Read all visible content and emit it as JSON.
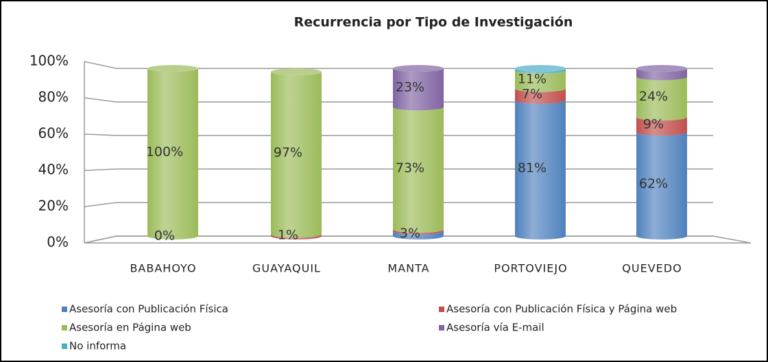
{
  "chart_data": {
    "type": "stacked_cylinder",
    "title": "Recurrencia por Tipo de Investigación",
    "categories": [
      "BABAHOYO",
      "GUAYAQUIL",
      "MANTA",
      "PORTOVIEJO",
      "QUEVEDO"
    ],
    "series": [
      {
        "name": "Asesoría con Publicación Física",
        "color": "#4f81bd",
        "values": [
          0,
          0,
          3,
          81,
          62
        ],
        "value_labels": [
          "0%",
          null,
          "3%",
          "81%",
          "62%"
        ]
      },
      {
        "name": "Asesoría con Publicación Física y Página web",
        "color": "#c0504d",
        "values": [
          0,
          1,
          1,
          7,
          9
        ],
        "value_labels": [
          null,
          "1%",
          null,
          "7%",
          "9%"
        ]
      },
      {
        "name": "Asesoría en Página web",
        "color": "#9bbb59",
        "values": [
          100,
          97,
          73,
          11,
          24
        ],
        "value_labels": [
          "100%",
          "97%",
          "73%",
          "11%",
          "24%"
        ]
      },
      {
        "name": "Asesoría vía E-mail",
        "color": "#8064a2",
        "values": [
          0,
          0,
          23,
          0,
          5
        ],
        "value_labels": [
          null,
          null,
          "23%",
          null,
          null
        ]
      },
      {
        "name": "No informa",
        "color": "#4bacc6",
        "values": [
          0,
          0,
          0,
          1,
          0
        ],
        "value_labels": [
          null,
          null,
          null,
          null,
          null
        ]
      }
    ],
    "ylim": [
      0,
      100
    ],
    "yticks": [
      {
        "value": 0,
        "label": "0%"
      },
      {
        "value": 20,
        "label": "20%"
      },
      {
        "value": 40,
        "label": "40%"
      },
      {
        "value": 60,
        "label": "60%"
      },
      {
        "value": 80,
        "label": "80%"
      },
      {
        "value": 100,
        "label": "100%"
      }
    ],
    "grid": true
  }
}
